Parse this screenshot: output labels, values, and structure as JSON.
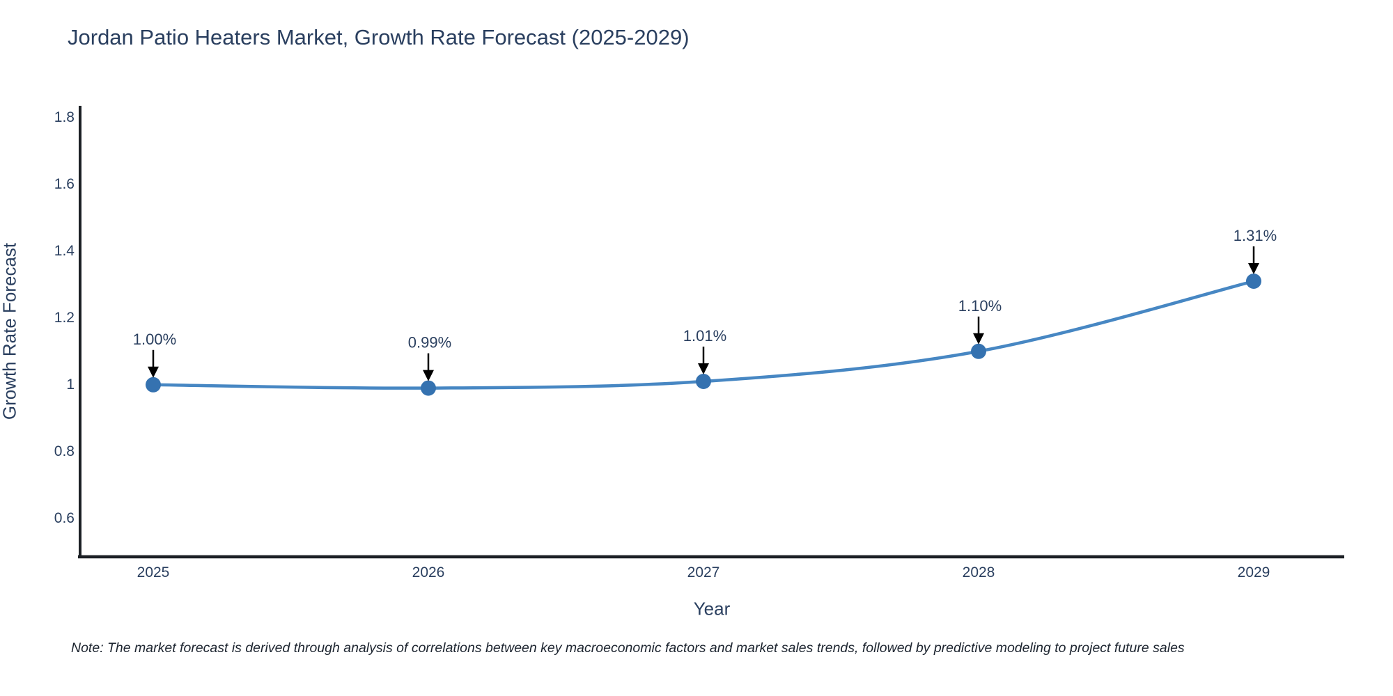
{
  "chart_data": {
    "type": "line",
    "title": "Jordan Patio Heaters Market, Growth Rate Forecast (2025-2029)",
    "xlabel": "Year",
    "ylabel": "Growth Rate Forecast",
    "x": [
      2025,
      2026,
      2027,
      2028,
      2029
    ],
    "series": [
      {
        "name": "Growth Rate Forecast",
        "values": [
          1.0,
          0.99,
          1.01,
          1.1,
          1.31
        ],
        "point_labels": [
          "1.00%",
          "0.99%",
          "1.01%",
          "1.10%",
          "1.31%"
        ]
      }
    ],
    "xtick_labels": [
      "2025",
      "2026",
      "2027",
      "2028",
      "2029"
    ],
    "ytick_values": [
      0.6,
      0.8,
      1.0,
      1.2,
      1.4,
      1.6,
      1.8
    ],
    "ytick_labels": [
      "0.6",
      "0.8",
      "1",
      "1.2",
      "1.4",
      "1.6",
      "1.8"
    ],
    "ylim": [
      0.485,
      1.835
    ],
    "grid": false,
    "legend_position": "none",
    "line_shape": "spline",
    "colors": {
      "line": "#4787c3",
      "marker": "#3572b0",
      "axis_line": "#1c2025",
      "text": "#2a3f5f",
      "annotation_arrow": "#000000"
    }
  },
  "note": "Note: The market forecast is derived through analysis of correlations between key macroeconomic factors and market sales trends, followed by predictive modeling to project future sales"
}
